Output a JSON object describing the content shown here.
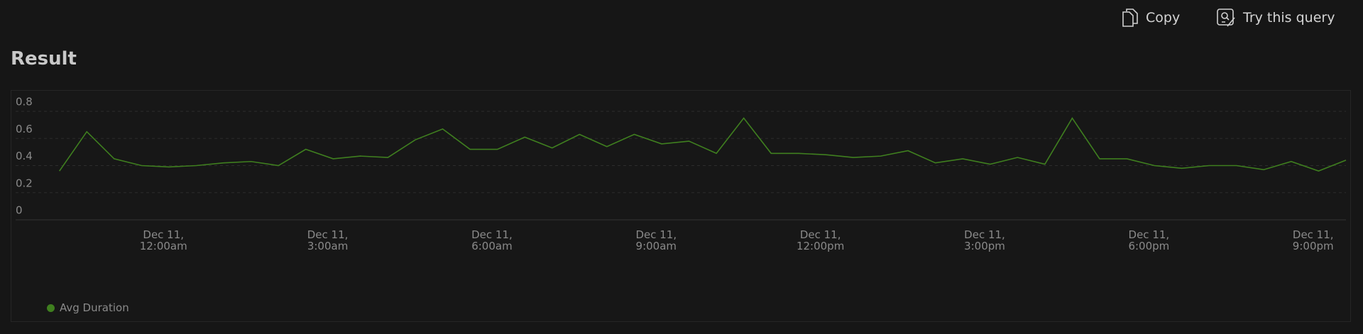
{
  "toolbar": {
    "copy": "Copy",
    "try_query": "Try this query"
  },
  "chart_data": {
    "type": "line",
    "title": "Result",
    "x": [
      -1.9,
      -1.4,
      -0.9,
      -0.4,
      0.1,
      0.6,
      1.1,
      1.6,
      2.1,
      2.6,
      3.1,
      3.6,
      4.1,
      4.6,
      5.1,
      5.6,
      6.1,
      6.6,
      7.1,
      7.6,
      8.1,
      8.6,
      9.1,
      9.6,
      10.1,
      10.6,
      11.1,
      11.6,
      12.1,
      12.6,
      13.1,
      13.6,
      14.1,
      14.6,
      15.1,
      15.6,
      16.1,
      16.6,
      17.1,
      17.6,
      18.1,
      18.6,
      19.1,
      19.6,
      20.1,
      20.6,
      21.1,
      21.6
    ],
    "series": [
      {
        "name": "Avg Duration",
        "color": "#3f7f1f",
        "values": [
          0.36,
          0.65,
          0.45,
          0.4,
          0.39,
          0.4,
          0.42,
          0.43,
          0.4,
          0.52,
          0.45,
          0.47,
          0.46,
          0.59,
          0.67,
          0.52,
          0.52,
          0.61,
          0.53,
          0.63,
          0.54,
          0.63,
          0.56,
          0.58,
          0.49,
          0.75,
          0.49,
          0.49,
          0.48,
          0.46,
          0.47,
          0.51,
          0.42,
          0.45,
          0.41,
          0.46,
          0.41,
          0.75,
          0.45,
          0.45,
          0.4,
          0.38,
          0.4,
          0.4,
          0.37,
          0.43,
          0.36,
          0.44
        ]
      }
    ],
    "xlim": [
      -2.7,
      21.6
    ],
    "xticks": [
      {
        "value": 0,
        "label": "Dec 11, 12:00am"
      },
      {
        "value": 3,
        "label": "Dec 11, 3:00am"
      },
      {
        "value": 6,
        "label": "Dec 11, 6:00am"
      },
      {
        "value": 9,
        "label": "Dec 11, 9:00am"
      },
      {
        "value": 12,
        "label": "Dec 11, 12:00pm"
      },
      {
        "value": 15,
        "label": "Dec 11, 3:00pm"
      },
      {
        "value": 18,
        "label": "Dec 11, 6:00pm"
      },
      {
        "value": 21,
        "label": "Dec 11, 9:00pm"
      }
    ],
    "ylim": [
      0,
      0.8
    ],
    "yticks": [
      0,
      0.2,
      0.4,
      0.6,
      0.8
    ],
    "grid": true,
    "legend": "bottom-left"
  }
}
